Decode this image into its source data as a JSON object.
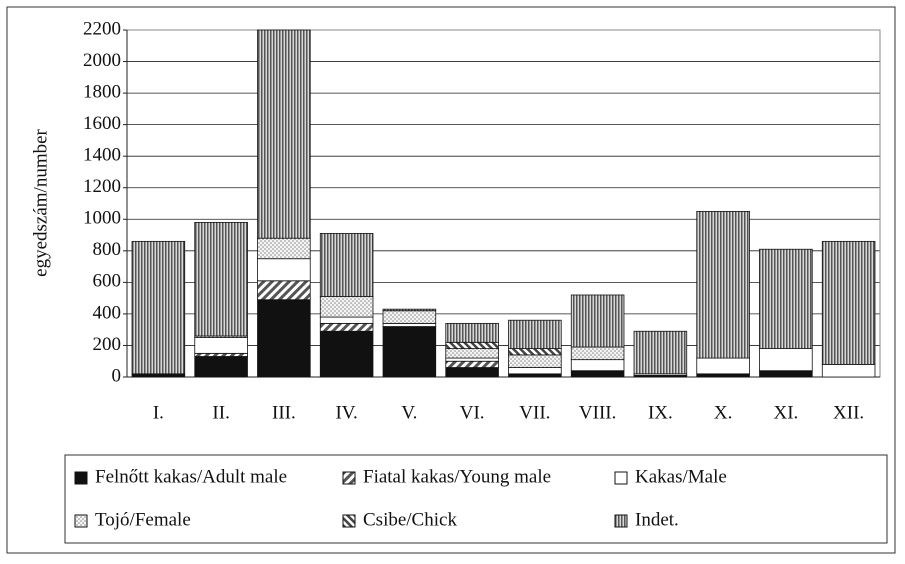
{
  "chart_data": {
    "type": "stacked_bar",
    "y_label": "egyedszám/number",
    "categories": [
      "I.",
      "II.",
      "III.",
      "IV.",
      "V.",
      "VI.",
      "VII.",
      "VIII.",
      "IX.",
      "X.",
      "XI.",
      "XII."
    ],
    "series": [
      {
        "name": "Felnőtt kakas/Adult male",
        "color": "#111111",
        "pattern": "solid",
        "values": [
          20,
          130,
          490,
          290,
          320,
          60,
          20,
          40,
          10,
          20,
          40,
          0
        ]
      },
      {
        "name": "Fiatal kakas/Young male",
        "color": "#555555",
        "pattern": "diagonal",
        "values": [
          0,
          20,
          120,
          50,
          0,
          40,
          0,
          0,
          0,
          0,
          0,
          0
        ]
      },
      {
        "name": "Kakas/Male",
        "color": "#ffffff",
        "pattern": "solid",
        "values": [
          0,
          100,
          140,
          40,
          20,
          20,
          40,
          70,
          10,
          100,
          140,
          80
        ]
      },
      {
        "name": "Tojó/Female",
        "color": "#888888",
        "pattern": "dots",
        "values": [
          0,
          10,
          130,
          130,
          80,
          60,
          80,
          80,
          0,
          0,
          0,
          0
        ]
      },
      {
        "name": "Csibe/Chick",
        "color": "#444444",
        "pattern": "antidiagonal",
        "values": [
          0,
          0,
          0,
          0,
          0,
          40,
          40,
          0,
          0,
          0,
          0,
          0
        ]
      },
      {
        "name": "Indet.",
        "color": "#666666",
        "pattern": "vertical",
        "values": [
          840,
          720,
          1320,
          400,
          10,
          120,
          180,
          330,
          270,
          930,
          630,
          780
        ]
      }
    ],
    "ylim": [
      0,
      2200
    ],
    "yticks": [
      0,
      200,
      400,
      600,
      800,
      1000,
      1200,
      1400,
      1600,
      1800,
      2000,
      2200
    ],
    "grid": true,
    "legend": "bottom"
  }
}
